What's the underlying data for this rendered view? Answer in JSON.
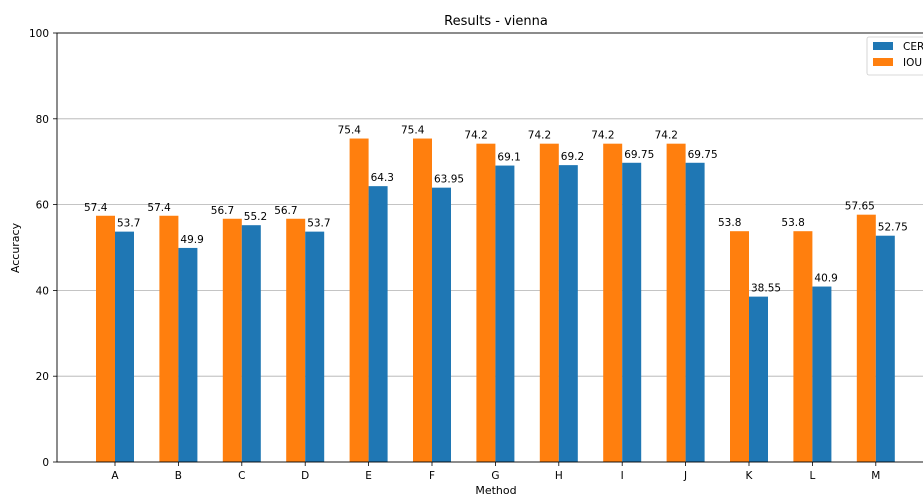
{
  "chart_data": {
    "type": "bar",
    "title": "Results - vienna",
    "xlabel": "Method",
    "ylabel": "Accuracy",
    "ylim": [
      0,
      100
    ],
    "yticks": [
      0,
      20,
      40,
      60,
      80,
      100
    ],
    "grid": "horizontal",
    "legend_position": "top-right",
    "categories": [
      "A",
      "B",
      "C",
      "D",
      "E",
      "F",
      "G",
      "H",
      "I",
      "J",
      "K",
      "L",
      "M"
    ],
    "series": [
      {
        "name": "IOU",
        "color": "#ff7f0e",
        "values": [
          57.4,
          57.4,
          56.7,
          56.7,
          75.4,
          75.4,
          74.2,
          74.2,
          74.2,
          74.2,
          53.8,
          53.8,
          57.65
        ],
        "labels": [
          "57.4",
          "57.4",
          "56.7",
          "56.7",
          "75.4",
          "75.4",
          "74.2",
          "74.2",
          "74.2",
          "74.2",
          "53.8",
          "53.8",
          "57.65"
        ]
      },
      {
        "name": "CER",
        "color": "#1f77b4",
        "values": [
          53.7,
          49.9,
          55.2,
          53.7,
          64.3,
          63.95,
          69.1,
          69.2,
          69.75,
          69.75,
          38.55,
          40.9,
          52.75
        ],
        "labels": [
          "53.7",
          "49.9",
          "55.2",
          "53.7",
          "64.3",
          "63.95",
          "69.1",
          "69.2",
          "69.75",
          "69.75",
          "38.55",
          "40.9",
          "52.75"
        ]
      }
    ],
    "legend_order": [
      "CER",
      "IOU"
    ],
    "legend_visible_text": [
      "CER",
      "IOU"
    ]
  }
}
